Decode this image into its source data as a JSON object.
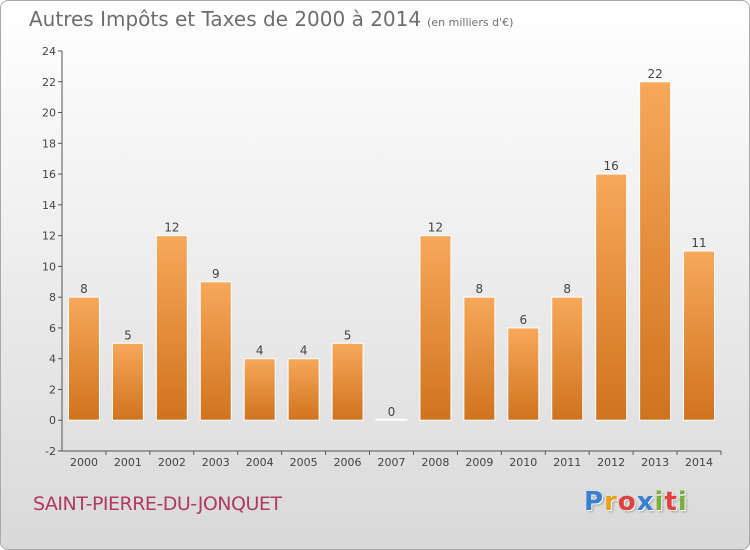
{
  "header": {
    "title": "Autres Impôts et Taxes de 2000 à 2014",
    "unit": "(en milliers d'€)"
  },
  "footer": {
    "commune": "SAINT-PIERRE-DU-JONQUET",
    "logo": {
      "letters": [
        "P",
        "r",
        "o",
        "x",
        "i",
        "t",
        "i"
      ],
      "colors": [
        "#3a7fd0",
        "#e8a020",
        "#e04040",
        "#3a7fd0",
        "#7ab03a",
        "#e04040",
        "#7ab03a"
      ]
    }
  },
  "colors": {
    "bar_top": "#f7a85a",
    "bar_bottom": "#d0731e",
    "accent_commune": "#b03a5e"
  },
  "chart_data": {
    "type": "bar",
    "title": "Autres Impôts et Taxes de 2000 à 2014",
    "subtitle": "(en milliers d'€)",
    "categories": [
      "2000",
      "2001",
      "2002",
      "2003",
      "2004",
      "2005",
      "2006",
      "2007",
      "2008",
      "2009",
      "2010",
      "2011",
      "2012",
      "2013",
      "2014"
    ],
    "values": [
      8,
      5,
      12,
      9,
      4,
      4,
      5,
      0,
      12,
      8,
      6,
      8,
      16,
      22,
      11
    ],
    "ylim": [
      -2,
      24
    ],
    "yticks": [
      -2,
      0,
      2,
      4,
      6,
      8,
      10,
      12,
      14,
      16,
      18,
      20,
      22,
      24
    ],
    "grid": false,
    "xlabel": "",
    "ylabel": ""
  }
}
